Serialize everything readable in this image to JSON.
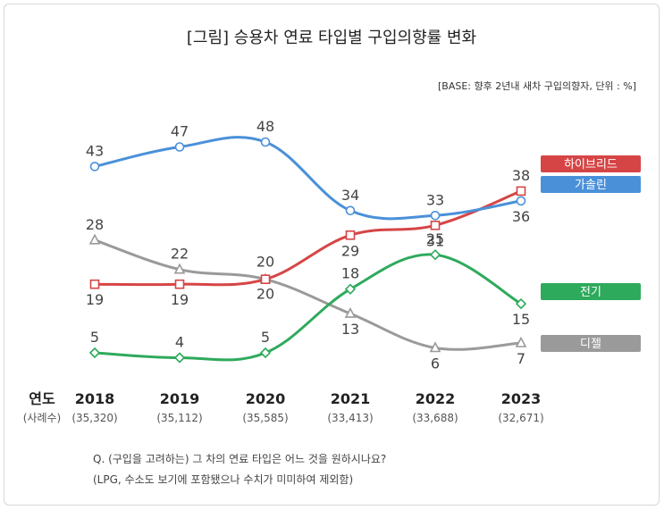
{
  "chart_data": {
    "type": "line",
    "title": "[그림] 승용차 연료 타입별 구입의향률 변화",
    "base_note": "[BASE: 향후 2년내 새차 구입의향자, 단위 : %]",
    "x_header": "연도",
    "count_header": "(사례수)",
    "x": [
      "2018",
      "2019",
      "2020",
      "2021",
      "2022",
      "2023"
    ],
    "counts": [
      "(35,320)",
      "(35,112)",
      "(35,585)",
      "(33,413)",
      "(33,688)",
      "(32,671)"
    ],
    "ylim": [
      0,
      50
    ],
    "series": [
      {
        "name": "가솔린",
        "color": "#4a90d9",
        "marker": "circle",
        "values": [
          43,
          47,
          48,
          34,
          33,
          36
        ]
      },
      {
        "name": "하이브리드",
        "color": "#d64545",
        "marker": "square",
        "values": [
          19,
          19,
          20,
          29,
          31,
          38
        ]
      },
      {
        "name": "디젤",
        "color": "#9a9a9a",
        "marker": "triangle",
        "values": [
          28,
          22,
          20,
          13,
          6,
          7
        ]
      },
      {
        "name": "전기",
        "color": "#2eaa5c",
        "marker": "diamond",
        "values": [
          5,
          4,
          5,
          18,
          25,
          15
        ]
      }
    ],
    "notes": [
      "Q. (구입을 고려하는) 그 차의 연료 타입은 어느 것을 원하시나요?",
      "(LPG, 수소도 보기에 포함됐으나 수치가 미미하여 제외함)"
    ]
  }
}
